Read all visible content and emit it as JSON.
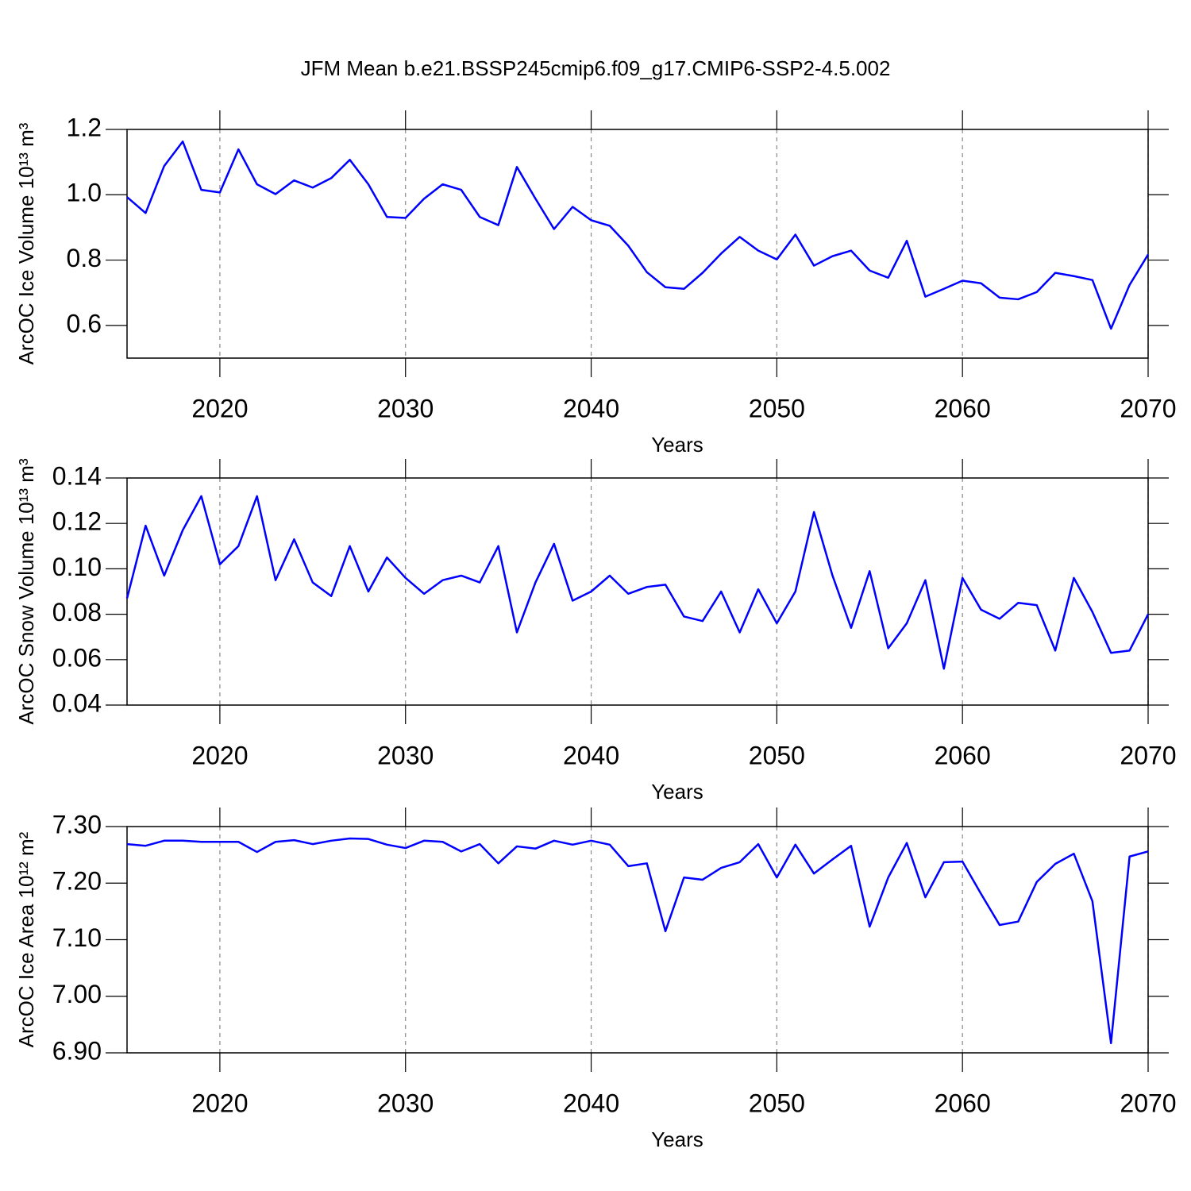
{
  "title": "JFM Mean b.e21.BSSP245cmip6.f09_g17.CMIP6-SSP2-4.5.002",
  "chart_data": [
    {
      "type": "line",
      "y_label": "ArcOC Ice Volume 10¹³ m³",
      "x_label": "Years",
      "color": "#0000ff",
      "xgrid": true,
      "x": [
        2015,
        2016,
        2017,
        2018,
        2019,
        2020,
        2021,
        2022,
        2023,
        2024,
        2025,
        2026,
        2027,
        2028,
        2029,
        2030,
        2031,
        2032,
        2033,
        2034,
        2035,
        2036,
        2037,
        2038,
        2039,
        2040,
        2041,
        2042,
        2043,
        2044,
        2045,
        2046,
        2047,
        2048,
        2049,
        2050,
        2051,
        2052,
        2053,
        2054,
        2055,
        2056,
        2057,
        2058,
        2059,
        2060,
        2061,
        2062,
        2063,
        2064,
        2065,
        2066,
        2067,
        2068,
        2069,
        2070
      ],
      "values": [
        0.993,
        0.944,
        1.088,
        1.163,
        1.015,
        1.007,
        1.139,
        1.032,
        1.002,
        1.044,
        1.022,
        1.051,
        1.107,
        1.032,
        0.932,
        0.929,
        0.988,
        1.032,
        1.015,
        0.932,
        0.907,
        1.085,
        0.988,
        0.895,
        0.963,
        0.922,
        0.905,
        0.844,
        0.763,
        0.717,
        0.712,
        0.761,
        0.82,
        0.871,
        0.829,
        0.802,
        0.878,
        0.783,
        0.812,
        0.829,
        0.768,
        0.746,
        0.859,
        0.688,
        0.712,
        0.737,
        0.729,
        0.685,
        0.68,
        0.702,
        0.761,
        0.751,
        0.739,
        0.59,
        0.724,
        0.817
      ],
      "xlim": [
        2015,
        2070
      ],
      "xticks": [
        2020,
        2030,
        2040,
        2050,
        2060,
        2070
      ],
      "ylim": [
        0.5,
        1.2
      ],
      "yticks": [
        0.6,
        0.8,
        {
          "value": 1,
          "label": "1.0"
        },
        1.2
      ]
    },
    {
      "type": "line",
      "y_label": "ArcOC Snow Volume 10¹³ m³",
      "x_label": "Years",
      "color": "#0000ff",
      "xgrid": true,
      "x": [
        2015,
        2016,
        2017,
        2018,
        2019,
        2020,
        2021,
        2022,
        2023,
        2024,
        2025,
        2026,
        2027,
        2028,
        2029,
        2030,
        2031,
        2032,
        2033,
        2034,
        2035,
        2036,
        2037,
        2038,
        2039,
        2040,
        2041,
        2042,
        2043,
        2044,
        2045,
        2046,
        2047,
        2048,
        2049,
        2050,
        2051,
        2052,
        2053,
        2054,
        2055,
        2056,
        2057,
        2058,
        2059,
        2060,
        2061,
        2062,
        2063,
        2064,
        2065,
        2066,
        2067,
        2068,
        2069,
        2070
      ],
      "values": [
        0.087,
        0.119,
        0.097,
        0.117,
        0.132,
        0.102,
        0.11,
        0.132,
        0.095,
        0.113,
        0.094,
        0.088,
        0.11,
        0.09,
        0.105,
        0.096,
        0.089,
        0.095,
        0.097,
        0.094,
        0.11,
        0.072,
        0.094,
        0.111,
        0.086,
        0.09,
        0.097,
        0.089,
        0.092,
        0.093,
        0.079,
        0.077,
        0.09,
        0.072,
        0.091,
        0.076,
        0.09,
        0.125,
        0.097,
        0.074,
        0.099,
        0.065,
        0.076,
        0.095,
        0.056,
        0.096,
        0.082,
        0.078,
        0.085,
        0.084,
        0.064,
        0.096,
        0.081,
        0.063,
        0.064,
        0.08
      ],
      "xlim": [
        2015,
        2070
      ],
      "xticks": [
        2020,
        2030,
        2040,
        2050,
        2060,
        2070
      ],
      "ylim": [
        0.04,
        0.14
      ],
      "yticks": [
        0.04,
        0.06,
        0.08,
        {
          "value": 0.1,
          "label": "0.10"
        },
        0.12,
        0.14
      ]
    },
    {
      "type": "line",
      "y_label": "ArcOC Ice Area 10¹² m²",
      "x_label": "Years",
      "color": "#0000ff",
      "xgrid": true,
      "x": [
        2015,
        2016,
        2017,
        2018,
        2019,
        2020,
        2021,
        2022,
        2023,
        2024,
        2025,
        2026,
        2027,
        2028,
        2029,
        2030,
        2031,
        2032,
        2033,
        2034,
        2035,
        2036,
        2037,
        2038,
        2039,
        2040,
        2041,
        2042,
        2043,
        2044,
        2045,
        2046,
        2047,
        2048,
        2049,
        2050,
        2051,
        2052,
        2053,
        2054,
        2055,
        2056,
        2057,
        2058,
        2059,
        2060,
        2061,
        2062,
        2063,
        2064,
        2065,
        2066,
        2067,
        2068,
        2069,
        2070
      ],
      "values": [
        7.269,
        7.266,
        7.275,
        7.275,
        7.273,
        7.273,
        7.273,
        7.255,
        7.273,
        7.276,
        7.269,
        7.275,
        7.279,
        7.278,
        7.268,
        7.262,
        7.275,
        7.273,
        7.256,
        7.269,
        7.235,
        7.265,
        7.261,
        7.275,
        7.268,
        7.275,
        7.268,
        7.23,
        7.235,
        7.115,
        7.21,
        7.206,
        7.227,
        7.237,
        7.269,
        7.21,
        7.268,
        7.217,
        7.242,
        7.266,
        7.123,
        7.21,
        7.271,
        7.175,
        7.237,
        7.238,
        7.181,
        7.126,
        7.132,
        7.202,
        7.234,
        7.252,
        7.168,
        6.917,
        7.247,
        7.256
      ],
      "xlim": [
        2015,
        2070
      ],
      "xticks": [
        2020,
        2030,
        2040,
        2050,
        2060,
        2070
      ],
      "ylim": [
        6.9,
        7.3
      ],
      "yticks": [
        {
          "value": 6.9,
          "label": "6.90"
        },
        {
          "value": 7,
          "label": "7.00"
        },
        {
          "value": 7.1,
          "label": "7.10"
        },
        {
          "value": 7.2,
          "label": "7.20"
        },
        {
          "value": 7.3,
          "label": "7.30"
        }
      ]
    }
  ]
}
